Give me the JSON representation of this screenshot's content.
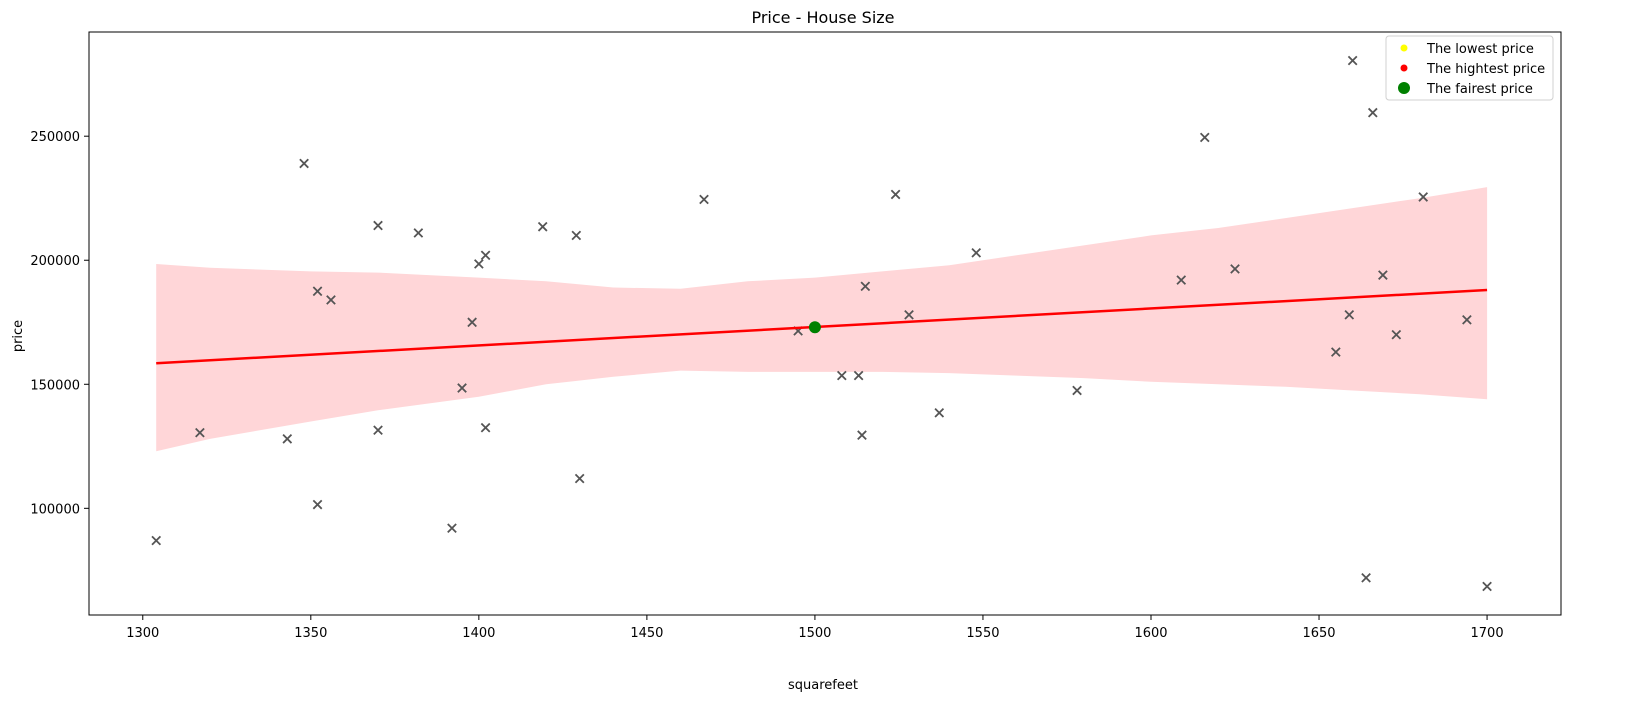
{
  "chart_data": {
    "type": "scatter",
    "title": "Price - House Size",
    "xlabel": "squarefeet",
    "ylabel": "price",
    "xlim": [
      1284,
      1722
    ],
    "ylim": [
      57000,
      292000
    ],
    "x_ticks": [
      1300,
      1350,
      1400,
      1450,
      1500,
      1550,
      1600,
      1650,
      1700
    ],
    "y_ticks": [
      100000,
      150000,
      200000,
      250000
    ],
    "grid": false,
    "legend_position": "top-right",
    "colors": {
      "points": "#555555",
      "regression_line": "#ff0000",
      "confidence_band": "#ffd6d8",
      "lowest": "#ffff00",
      "highest": "#ff0000",
      "fairest": "#008000"
    },
    "series": [
      {
        "name": "",
        "marker": "x",
        "points": [
          [
            1304,
            87000
          ],
          [
            1317,
            130500
          ],
          [
            1343,
            128000
          ],
          [
            1348,
            239000
          ],
          [
            1352,
            187500
          ],
          [
            1352,
            101500
          ],
          [
            1356,
            184000
          ],
          [
            1370,
            214000
          ],
          [
            1370,
            131500
          ],
          [
            1382,
            211000
          ],
          [
            1392,
            92000
          ],
          [
            1395,
            148500
          ],
          [
            1398,
            175000
          ],
          [
            1400,
            198500
          ],
          [
            1402,
            202000
          ],
          [
            1402,
            132500
          ],
          [
            1419,
            213500
          ],
          [
            1429,
            210000
          ],
          [
            1430,
            112000
          ],
          [
            1467,
            224500
          ],
          [
            1495,
            171500
          ],
          [
            1508,
            153500
          ],
          [
            1513,
            153500
          ],
          [
            1514,
            129500
          ],
          [
            1515,
            189500
          ],
          [
            1524,
            226500
          ],
          [
            1528,
            178000
          ],
          [
            1537,
            138500
          ],
          [
            1548,
            203000
          ],
          [
            1578,
            147500
          ],
          [
            1609,
            192000
          ],
          [
            1616,
            249500
          ],
          [
            1625,
            196500
          ],
          [
            1655,
            163000
          ],
          [
            1659,
            178000
          ],
          [
            1660,
            280500
          ],
          [
            1664,
            72000
          ],
          [
            1666,
            259500
          ],
          [
            1669,
            194000
          ],
          [
            1673,
            170000
          ],
          [
            1681,
            225500
          ],
          [
            1694,
            176000
          ],
          [
            1700,
            68500
          ]
        ]
      }
    ],
    "regression": {
      "x": [
        1304,
        1700
      ],
      "y": [
        158500,
        188000
      ],
      "band_x": [
        1304,
        1320,
        1350,
        1370,
        1400,
        1420,
        1440,
        1460,
        1480,
        1500,
        1520,
        1540,
        1560,
        1580,
        1600,
        1620,
        1640,
        1660,
        1680,
        1700
      ],
      "band_upper": [
        198500,
        197000,
        195500,
        195000,
        193000,
        191500,
        189000,
        188500,
        191500,
        193000,
        195500,
        198000,
        202000,
        206000,
        210000,
        213000,
        217000,
        221000,
        225000,
        229500
      ],
      "band_lower": [
        123000,
        128000,
        135000,
        139500,
        145000,
        150000,
        153000,
        155500,
        155000,
        155000,
        155000,
        154500,
        153500,
        152500,
        151000,
        150000,
        149000,
        147500,
        146000,
        144000
      ]
    },
    "highlights": {
      "fairest": [
        1500,
        173000
      ]
    },
    "legend": [
      {
        "label": "The lowest price",
        "color": "#ffff00",
        "size": "small"
      },
      {
        "label": "The hightest price",
        "color": "#ff0000",
        "size": "small"
      },
      {
        "label": "The fairest price",
        "color": "#008000",
        "size": "large"
      }
    ]
  }
}
